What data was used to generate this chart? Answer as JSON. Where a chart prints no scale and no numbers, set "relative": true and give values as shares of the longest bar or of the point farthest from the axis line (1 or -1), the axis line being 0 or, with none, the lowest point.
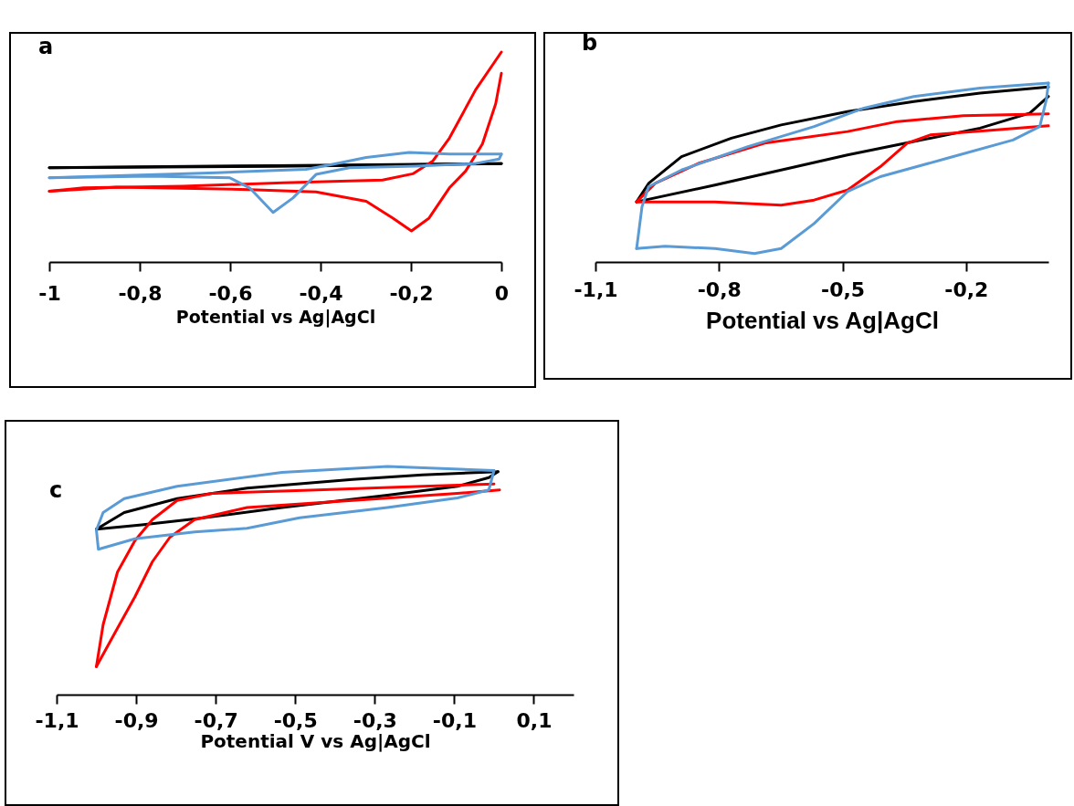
{
  "chart_data": [
    {
      "type": "line",
      "title": "a",
      "xlabel": "Potential vs Ag|AgCl",
      "relative": true,
      "xlim": [
        -1,
        0
      ],
      "xticks": [
        {
          "value": -1,
          "label": "-1"
        },
        {
          "value": -0.8,
          "label": "-0,8"
        },
        {
          "value": -0.6,
          "label": "-0,6"
        },
        {
          "value": -0.4,
          "label": "-0,4"
        },
        {
          "value": -0.2,
          "label": "-0,2"
        },
        {
          "value": 0,
          "label": "0"
        }
      ],
      "series": [
        {
          "color": "#000000",
          "x": [
            -1,
            -0.5,
            0
          ],
          "values": [
            0.449,
            0.459,
            0.469
          ]
        },
        {
          "color": "#000000",
          "x": [
            0,
            -0.5,
            -1
          ],
          "values": [
            0.469,
            0.455,
            0.449
          ]
        },
        {
          "color": "#ff0000",
          "x": [
            0,
            -0.057,
            -0.115,
            -0.152,
            -0.196,
            -0.263,
            -0.483,
            -0.704,
            -0.924,
            -1
          ],
          "values": [
            1,
            0.82,
            0.59,
            0.48,
            0.42,
            0.39,
            0.377,
            0.361,
            0.353,
            0.337
          ]
        },
        {
          "color": "#ff0000",
          "x": [
            -1,
            -0.851,
            -0.557,
            -0.41,
            -0.299,
            -0.24,
            -0.199,
            -0.16,
            -0.115,
            -0.079,
            -0.042,
            -0.0125,
            0
          ],
          "values": [
            0.337,
            0.356,
            0.345,
            0.334,
            0.289,
            0.209,
            0.148,
            0.209,
            0.353,
            0.433,
            0.562,
            0.754,
            0.899
          ]
        },
        {
          "color": "#5b9bd5",
          "x": [
            0,
            -0.115,
            -0.204,
            -0.299,
            -0.373,
            -0.432,
            -0.63,
            -1
          ],
          "values": [
            0.514,
            0.514,
            0.522,
            0.498,
            0.465,
            0.441,
            0.425,
            0.401
          ]
        },
        {
          "color": "#5b9bd5",
          "x": [
            -1,
            -0.777,
            -0.601,
            -0.557,
            -0.505,
            -0.461,
            -0.41,
            -0.336,
            -0.189,
            -0.057,
            -0.005,
            0
          ],
          "values": [
            0.401,
            0.409,
            0.401,
            0.353,
            0.236,
            0.305,
            0.417,
            0.449,
            0.457,
            0.469,
            0.49,
            0.514
          ]
        }
      ]
    },
    {
      "type": "line",
      "title": "b",
      "xlabel": "Potential vs Ag|AgCl",
      "relative": true,
      "xlim": [
        -1.1,
        0
      ],
      "xticks": [
        {
          "value": -1.1,
          "label": "-1,1"
        },
        {
          "value": -0.8,
          "label": "-0,8"
        },
        {
          "value": -0.5,
          "label": "-0,5"
        },
        {
          "value": -0.2,
          "label": "-0,2"
        }
      ],
      "series": [
        {
          "color": "#000000",
          "x": [
            -1,
            -0.971,
            -0.891,
            -0.77,
            -0.649,
            -0.488,
            -0.327,
            -0.166,
            0
          ],
          "values": [
            0.336,
            0.439,
            0.589,
            0.692,
            0.766,
            0.841,
            0.897,
            0.944,
            0.978
          ]
        },
        {
          "color": "#000000",
          "x": [
            0,
            -0.045,
            -0.166,
            -0.327,
            -0.488,
            -0.649,
            -0.81,
            -1
          ],
          "values": [
            0.925,
            0.832,
            0.748,
            0.673,
            0.598,
            0.514,
            0.43,
            0.336
          ]
        },
        {
          "color": "#ff0000",
          "x": [
            -1,
            -0.955,
            -0.85,
            -0.689,
            -0.488,
            -0.367,
            -0.207,
            0
          ],
          "values": [
            0.336,
            0.439,
            0.551,
            0.664,
            0.729,
            0.785,
            0.817,
            0.828
          ]
        },
        {
          "color": "#ff0000",
          "x": [
            0,
            -0.126,
            -0.287,
            -0.343,
            -0.408,
            -0.488,
            -0.569,
            -0.649,
            -0.81,
            -1
          ],
          "values": [
            0.761,
            0.738,
            0.71,
            0.664,
            0.533,
            0.402,
            0.346,
            0.318,
            0.336,
            0.336
          ]
        },
        {
          "color": "#5b9bd5",
          "x": [
            0,
            -0.166,
            -0.327,
            -0.448,
            -0.569,
            -0.73,
            -0.891,
            -0.971,
            -0.987,
            -1
          ],
          "values": [
            1,
            0.972,
            0.925,
            0.86,
            0.757,
            0.645,
            0.514,
            0.421,
            0.308,
            0.075
          ]
        },
        {
          "color": "#5b9bd5",
          "x": [
            -1,
            -0.931,
            -0.81,
            -0.714,
            -0.649,
            -0.569,
            -0.488,
            -0.408,
            -0.247,
            -0.086,
            -0.021,
            -0.005,
            0
          ],
          "values": [
            0.075,
            0.088,
            0.075,
            0.047,
            0.075,
            0.215,
            0.393,
            0.477,
            0.579,
            0.682,
            0.757,
            0.907,
            1
          ]
        }
      ]
    },
    {
      "type": "line",
      "title": "c",
      "xlabel": "Potential V vs Ag|AgCl",
      "relative": true,
      "xlim": [
        -1.1,
        0.2
      ],
      "xticks": [
        {
          "value": -1.1,
          "label": "-1,1"
        },
        {
          "value": -0.9,
          "label": "-0,9"
        },
        {
          "value": -0.7,
          "label": "-0,7"
        },
        {
          "value": -0.5,
          "label": "-0,5"
        },
        {
          "value": -0.3,
          "label": "-0,3"
        },
        {
          "value": -0.1,
          "label": "-0,1"
        },
        {
          "value": 0.1,
          "label": "0,1"
        }
      ],
      "series": [
        {
          "color": "#000000",
          "x": [
            -1,
            -0.93,
            -0.797,
            -0.621,
            -0.356,
            -0.18,
            0.01
          ],
          "values": [
            0.725,
            0.798,
            0.859,
            0.905,
            0.943,
            0.963,
            0.977
          ]
        },
        {
          "color": "#000000",
          "x": [
            0.01,
            -0.013,
            -0.092,
            -0.268,
            -0.533,
            -0.753,
            -0.886,
            -1
          ],
          "values": [
            0.977,
            0.951,
            0.913,
            0.874,
            0.82,
            0.77,
            0.744,
            0.725
          ]
        },
        {
          "color": "#ff0000",
          "x": [
            -1,
            -0.983,
            -0.947,
            -0.903,
            -0.859,
            -0.797,
            -0.709,
            -0.445,
            -0.18,
            0
          ],
          "values": [
            0.123,
            0.307,
            0.537,
            0.675,
            0.767,
            0.851,
            0.882,
            0.897,
            0.913,
            0.923
          ]
        },
        {
          "color": "#ff0000",
          "x": [
            0.014,
            -0.092,
            -0.356,
            -0.621,
            -0.753,
            -0.815,
            -0.859,
            -0.903,
            -0.947,
            -1
          ],
          "values": [
            0.897,
            0.882,
            0.851,
            0.82,
            0.767,
            0.69,
            0.583,
            0.429,
            0.291,
            0.123
          ]
        },
        {
          "color": "#5b9bd5",
          "x": [
            0,
            -0.268,
            -0.533,
            -0.797,
            -0.93,
            -0.983,
            -1
          ],
          "values": [
            0.982,
            1,
            0.974,
            0.913,
            0.859,
            0.798,
            0.721
          ]
        },
        {
          "color": "#5b9bd5",
          "x": [
            -1,
            -0.995,
            -0.903,
            -0.753,
            -0.621,
            -0.489,
            -0.268,
            -0.092,
            -0.013,
            0
          ],
          "values": [
            0.721,
            0.637,
            0.683,
            0.713,
            0.729,
            0.775,
            0.82,
            0.862,
            0.897,
            0.982
          ]
        }
      ]
    }
  ]
}
